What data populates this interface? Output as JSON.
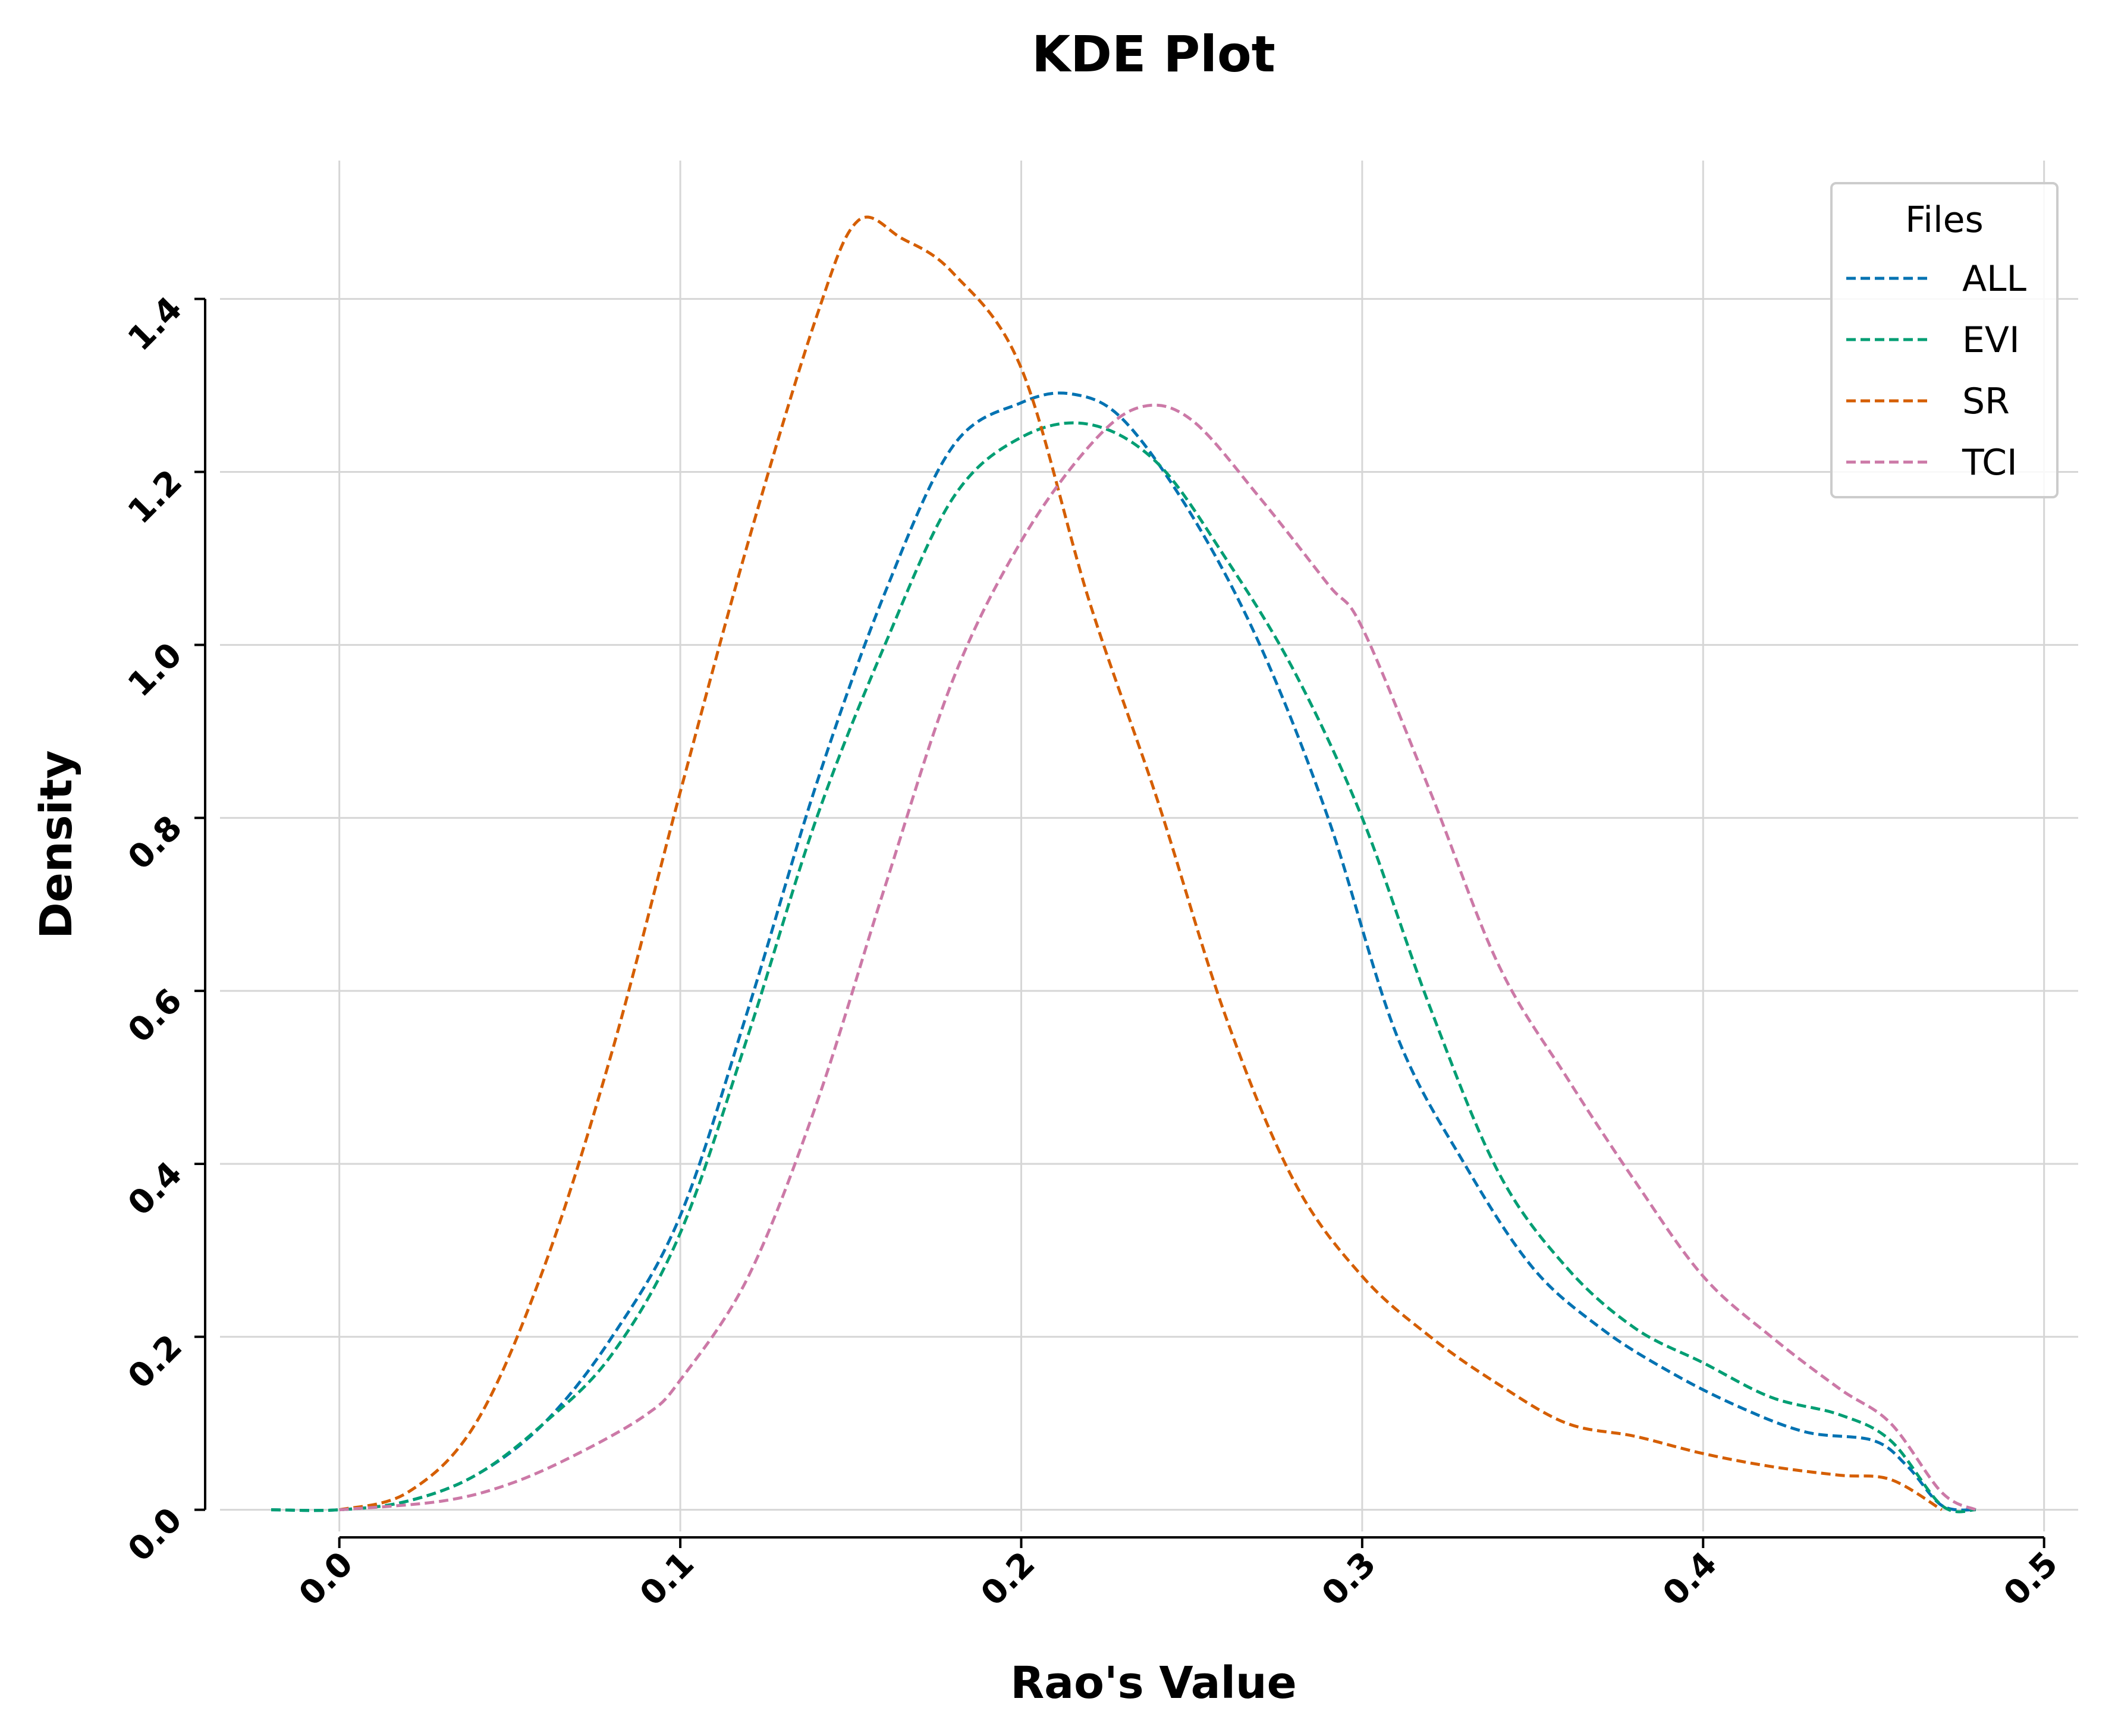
{
  "chart_data": {
    "type": "line",
    "title": "KDE Plot",
    "xlabel": "Rao's Value",
    "ylabel": "Density",
    "xlim": [
      -0.035,
      0.51
    ],
    "ylim": [
      -0.025,
      1.56
    ],
    "x_ticks": [
      0.0,
      0.1,
      0.2,
      0.3,
      0.4,
      0.5
    ],
    "x_tick_labels": [
      "0.0",
      "0.1",
      "0.2",
      "0.3",
      "0.4",
      "0.5"
    ],
    "y_ticks": [
      0.0,
      0.2,
      0.4,
      0.6,
      0.8,
      1.0,
      1.2,
      1.4
    ],
    "y_tick_labels": [
      "0.0",
      "0.2",
      "0.4",
      "0.6",
      "0.8",
      "1.0",
      "1.2",
      "1.4"
    ],
    "grid": true,
    "line_style": "dashed",
    "legend": {
      "title": "Files",
      "position": "top-right"
    },
    "series": [
      {
        "name": "ALL",
        "color": "#0072b2",
        "points": [
          [
            -0.02,
            0.0
          ],
          [
            0.0,
            0.0
          ],
          [
            0.02,
            0.01
          ],
          [
            0.04,
            0.04
          ],
          [
            0.06,
            0.1
          ],
          [
            0.08,
            0.2
          ],
          [
            0.1,
            0.34
          ],
          [
            0.12,
            0.58
          ],
          [
            0.14,
            0.84
          ],
          [
            0.16,
            1.06
          ],
          [
            0.18,
            1.23
          ],
          [
            0.2,
            1.28
          ],
          [
            0.215,
            1.29
          ],
          [
            0.23,
            1.26
          ],
          [
            0.25,
            1.15
          ],
          [
            0.27,
            1.0
          ],
          [
            0.29,
            0.8
          ],
          [
            0.31,
            0.55
          ],
          [
            0.33,
            0.4
          ],
          [
            0.35,
            0.28
          ],
          [
            0.37,
            0.21
          ],
          [
            0.39,
            0.16
          ],
          [
            0.41,
            0.12
          ],
          [
            0.43,
            0.09
          ],
          [
            0.45,
            0.08
          ],
          [
            0.46,
            0.05
          ],
          [
            0.47,
            0.005
          ],
          [
            0.48,
            0.0
          ]
        ]
      },
      {
        "name": "EVI",
        "color": "#009e73",
        "points": [
          [
            -0.02,
            0.0
          ],
          [
            0.0,
            0.0
          ],
          [
            0.02,
            0.01
          ],
          [
            0.04,
            0.04
          ],
          [
            0.06,
            0.1
          ],
          [
            0.08,
            0.18
          ],
          [
            0.1,
            0.32
          ],
          [
            0.12,
            0.55
          ],
          [
            0.14,
            0.8
          ],
          [
            0.16,
            1.0
          ],
          [
            0.18,
            1.17
          ],
          [
            0.2,
            1.24
          ],
          [
            0.22,
            1.255
          ],
          [
            0.24,
            1.21
          ],
          [
            0.26,
            1.1
          ],
          [
            0.28,
            0.97
          ],
          [
            0.3,
            0.8
          ],
          [
            0.32,
            0.58
          ],
          [
            0.34,
            0.39
          ],
          [
            0.36,
            0.28
          ],
          [
            0.38,
            0.21
          ],
          [
            0.4,
            0.17
          ],
          [
            0.42,
            0.13
          ],
          [
            0.44,
            0.11
          ],
          [
            0.455,
            0.08
          ],
          [
            0.47,
            0.005
          ],
          [
            0.48,
            0.0
          ]
        ]
      },
      {
        "name": "SR",
        "color": "#d55e00",
        "points": [
          [
            0.0,
            0.0
          ],
          [
            0.02,
            0.02
          ],
          [
            0.04,
            0.1
          ],
          [
            0.06,
            0.28
          ],
          [
            0.08,
            0.53
          ],
          [
            0.1,
            0.83
          ],
          [
            0.12,
            1.12
          ],
          [
            0.14,
            1.38
          ],
          [
            0.152,
            1.49
          ],
          [
            0.165,
            1.47
          ],
          [
            0.18,
            1.43
          ],
          [
            0.2,
            1.32
          ],
          [
            0.22,
            1.05
          ],
          [
            0.24,
            0.82
          ],
          [
            0.26,
            0.57
          ],
          [
            0.28,
            0.38
          ],
          [
            0.3,
            0.27
          ],
          [
            0.32,
            0.2
          ],
          [
            0.34,
            0.145
          ],
          [
            0.36,
            0.1
          ],
          [
            0.38,
            0.085
          ],
          [
            0.4,
            0.065
          ],
          [
            0.42,
            0.05
          ],
          [
            0.44,
            0.04
          ],
          [
            0.455,
            0.035
          ],
          [
            0.47,
            0.0
          ]
        ]
      },
      {
        "name": "TCI",
        "color": "#cc79a7",
        "points": [
          [
            0.0,
            0.0
          ],
          [
            0.03,
            0.01
          ],
          [
            0.05,
            0.03
          ],
          [
            0.07,
            0.065
          ],
          [
            0.09,
            0.11
          ],
          [
            0.1,
            0.15
          ],
          [
            0.12,
            0.27
          ],
          [
            0.14,
            0.47
          ],
          [
            0.16,
            0.72
          ],
          [
            0.18,
            0.96
          ],
          [
            0.2,
            1.12
          ],
          [
            0.22,
            1.23
          ],
          [
            0.235,
            1.275
          ],
          [
            0.25,
            1.26
          ],
          [
            0.27,
            1.17
          ],
          [
            0.29,
            1.07
          ],
          [
            0.3,
            1.02
          ],
          [
            0.32,
            0.83
          ],
          [
            0.34,
            0.63
          ],
          [
            0.36,
            0.5
          ],
          [
            0.38,
            0.38
          ],
          [
            0.4,
            0.27
          ],
          [
            0.42,
            0.2
          ],
          [
            0.44,
            0.14
          ],
          [
            0.455,
            0.1
          ],
          [
            0.47,
            0.02
          ],
          [
            0.48,
            0.0
          ]
        ]
      }
    ]
  }
}
